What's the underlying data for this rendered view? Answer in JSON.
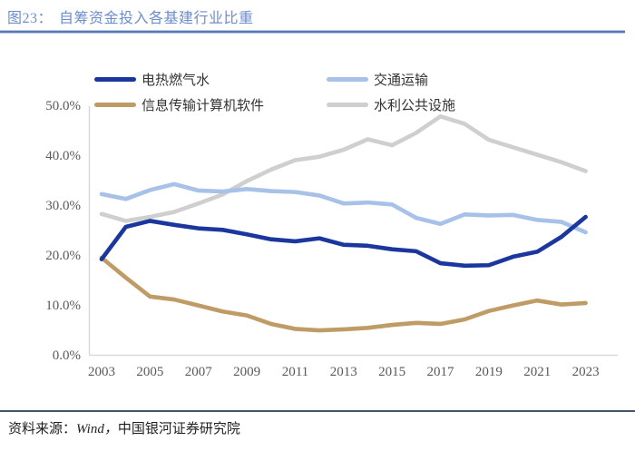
{
  "header": {
    "tag": "图23：",
    "title": "自筹资金投入各基建行业比重"
  },
  "footer": {
    "label": "资料来源：",
    "source": "Wind，",
    "org": "中国银河证券研究院"
  },
  "legend": [
    {
      "id": "power-heat-gas-water",
      "label": "电热燃气水",
      "color": "#1b379d"
    },
    {
      "id": "transport",
      "label": "交通运输",
      "color": "#a7c1e8"
    },
    {
      "id": "info-software",
      "label": "信息传输计算机软件",
      "color": "#bf9c66"
    },
    {
      "id": "water-utilities",
      "label": "水利公共设施",
      "color": "#cfcfcf"
    }
  ],
  "chart_data": {
    "type": "line",
    "title": "自筹资金投入各基建行业比重",
    "x": [
      2003,
      2004,
      2005,
      2006,
      2007,
      2008,
      2009,
      2010,
      2011,
      2012,
      2013,
      2014,
      2015,
      2016,
      2017,
      2018,
      2019,
      2020,
      2021,
      2022,
      2023
    ],
    "series": [
      {
        "id": "water-utilities",
        "name": "水利公共设施",
        "color": "#cfcfcf",
        "values": [
          28.4,
          27.0,
          27.8,
          28.8,
          30.5,
          32.3,
          35.0,
          37.3,
          39.2,
          39.9,
          41.3,
          43.4,
          42.2,
          44.7,
          48.0,
          46.5,
          43.3,
          41.8,
          40.3,
          38.8,
          37.0
        ]
      },
      {
        "id": "transport",
        "name": "交通运输",
        "color": "#a7c1e8",
        "values": [
          32.4,
          31.4,
          33.2,
          34.4,
          33.1,
          32.9,
          33.4,
          33.0,
          32.8,
          32.1,
          30.5,
          30.7,
          30.3,
          27.6,
          26.4,
          28.3,
          28.1,
          28.2,
          27.2,
          26.8,
          24.7
        ]
      },
      {
        "id": "info-software",
        "name": "信息传输计算机软件",
        "color": "#bf9c66",
        "values": [
          19.6,
          15.6,
          11.8,
          11.2,
          10.0,
          8.8,
          8.0,
          6.3,
          5.3,
          5.0,
          5.2,
          5.5,
          6.1,
          6.5,
          6.3,
          7.2,
          8.9,
          10.0,
          11.0,
          10.2,
          10.5
        ]
      },
      {
        "id": "power-heat-gas-water",
        "name": "电热燃气水",
        "color": "#1b379d",
        "values": [
          19.3,
          25.8,
          27.0,
          26.2,
          25.5,
          25.2,
          24.3,
          23.3,
          22.9,
          23.5,
          22.2,
          22.0,
          21.3,
          20.9,
          18.5,
          18.0,
          18.1,
          19.8,
          20.8,
          23.8,
          27.8
        ]
      }
    ],
    "ylim": [
      0,
      50
    ],
    "y_ticks": [
      {
        "label": "50.0%",
        "value": 50
      },
      {
        "label": "40.0%",
        "value": 40
      },
      {
        "label": "30.0%",
        "value": 30
      },
      {
        "label": "20.0%",
        "value": 20
      },
      {
        "label": "10.0%",
        "value": 10
      },
      {
        "label": "0.0%",
        "value": 0
      }
    ],
    "x_ticks": [
      {
        "label": "2003",
        "year": 2003
      },
      {
        "label": "2005",
        "year": 2005
      },
      {
        "label": "2007",
        "year": 2007
      },
      {
        "label": "2009",
        "year": 2009
      },
      {
        "label": "2011",
        "year": 2011
      },
      {
        "label": "2013",
        "year": 2013
      },
      {
        "label": "2015",
        "year": 2015
      },
      {
        "label": "2017",
        "year": 2017
      },
      {
        "label": "2019",
        "year": 2019
      },
      {
        "label": "2021",
        "year": 2021
      },
      {
        "label": "2023",
        "year": 2023
      }
    ],
    "grid": false,
    "legend_position": "top",
    "xlabel": "",
    "ylabel": ""
  }
}
